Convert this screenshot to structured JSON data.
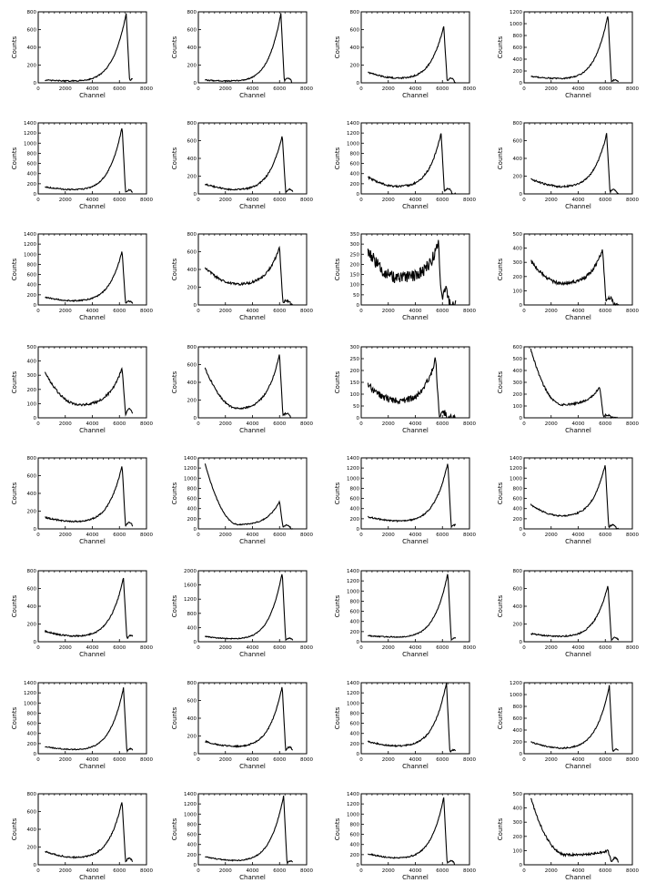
{
  "figure": {
    "rows": 8,
    "cols": 4,
    "ylabel": "Counts",
    "xlabel": "Channel"
  },
  "chart_data": [
    {
      "type": "line",
      "xlim": [
        0,
        8000
      ],
      "ylim": [
        0,
        800
      ],
      "xticks": [
        0,
        2000,
        4000,
        6000,
        8000
      ],
      "yticks": [
        0,
        200,
        400,
        600,
        800
      ],
      "xlabel": "Channel",
      "ylabel": "Counts",
      "base": 30,
      "mid": 20,
      "edge": 20,
      "peak": 780,
      "peak_x": 6500,
      "dip": 0,
      "noise": 6
    },
    {
      "type": "line",
      "xlim": [
        0,
        8000
      ],
      "ylim": [
        0,
        800
      ],
      "xticks": [
        0,
        2000,
        4000,
        6000,
        8000
      ],
      "yticks": [
        0,
        200,
        400,
        600,
        800
      ],
      "xlabel": "Channel",
      "ylabel": "Counts",
      "base": 30,
      "mid": 20,
      "edge": 20,
      "peak": 780,
      "peak_x": 6100,
      "dip": 0,
      "noise": 6
    },
    {
      "type": "line",
      "xlim": [
        0,
        8000
      ],
      "ylim": [
        0,
        800
      ],
      "xticks": [
        0,
        2000,
        4000,
        6000,
        8000
      ],
      "yticks": [
        0,
        200,
        400,
        600,
        800
      ],
      "xlabel": "Channel",
      "ylabel": "Counts",
      "base": 120,
      "mid": 50,
      "edge": 20,
      "peak": 640,
      "peak_x": 6100,
      "dip": 0,
      "noise": 8
    },
    {
      "type": "line",
      "xlim": [
        0,
        8000
      ],
      "ylim": [
        0,
        1200
      ],
      "xticks": [
        0,
        2000,
        4000,
        6000,
        8000
      ],
      "yticks": [
        0,
        200,
        400,
        600,
        800,
        1000,
        1200
      ],
      "xlabel": "Channel",
      "ylabel": "Counts",
      "base": 110,
      "mid": 70,
      "edge": 20,
      "peak": 1150,
      "peak_x": 6200,
      "dip": 0,
      "noise": 10
    },
    {
      "type": "line",
      "xlim": [
        0,
        8000
      ],
      "ylim": [
        0,
        1400
      ],
      "xticks": [
        0,
        2000,
        4000,
        6000,
        8000
      ],
      "yticks": [
        0,
        200,
        400,
        600,
        800,
        1000,
        1200,
        1400
      ],
      "xlabel": "Channel",
      "ylabel": "Counts",
      "base": 140,
      "mid": 80,
      "edge": 30,
      "peak": 1320,
      "peak_x": 6200,
      "dip": 0,
      "noise": 12
    },
    {
      "type": "line",
      "xlim": [
        0,
        8000
      ],
      "ylim": [
        0,
        800
      ],
      "xticks": [
        0,
        2000,
        4000,
        6000,
        8000
      ],
      "yticks": [
        0,
        200,
        400,
        600,
        800
      ],
      "xlabel": "Channel",
      "ylabel": "Counts",
      "base": 110,
      "mid": 45,
      "edge": 20,
      "peak": 660,
      "peak_x": 6200,
      "dip": 0,
      "noise": 8
    },
    {
      "type": "line",
      "xlim": [
        0,
        8000
      ],
      "ylim": [
        0,
        1400
      ],
      "xticks": [
        0,
        2000,
        4000,
        6000,
        8000
      ],
      "yticks": [
        0,
        200,
        400,
        600,
        800,
        1000,
        1200,
        1400
      ],
      "xlabel": "Channel",
      "ylabel": "Counts",
      "base": 330,
      "mid": 140,
      "edge": 40,
      "peak": 1200,
      "peak_x": 5900,
      "dip": 0,
      "noise": 18
    },
    {
      "type": "line",
      "xlim": [
        0,
        8000
      ],
      "ylim": [
        0,
        800
      ],
      "xticks": [
        0,
        2000,
        4000,
        6000,
        8000
      ],
      "yticks": [
        0,
        200,
        400,
        600,
        800
      ],
      "xlabel": "Channel",
      "ylabel": "Counts",
      "base": 170,
      "mid": 80,
      "edge": 20,
      "peak": 680,
      "peak_x": 6100,
      "dip": 0,
      "noise": 10
    },
    {
      "type": "line",
      "xlim": [
        0,
        8000
      ],
      "ylim": [
        0,
        1400
      ],
      "xticks": [
        0,
        2000,
        4000,
        6000,
        8000
      ],
      "yticks": [
        0,
        200,
        400,
        600,
        800,
        1000,
        1200,
        1400
      ],
      "xlabel": "Channel",
      "ylabel": "Counts",
      "base": 150,
      "mid": 80,
      "edge": 30,
      "peak": 1060,
      "peak_x": 6200,
      "dip": 0,
      "noise": 12
    },
    {
      "type": "line",
      "xlim": [
        0,
        8000
      ],
      "ylim": [
        0,
        800
      ],
      "xticks": [
        0,
        2000,
        4000,
        6000,
        8000
      ],
      "yticks": [
        0,
        200,
        400,
        600,
        800
      ],
      "xlabel": "Channel",
      "ylabel": "Counts",
      "base": 420,
      "mid": 230,
      "edge": 20,
      "peak": 650,
      "peak_x": 6000,
      "dip": 0,
      "noise": 14
    },
    {
      "type": "line",
      "xlim": [
        0,
        8000
      ],
      "ylim": [
        0,
        350
      ],
      "xticks": [
        0,
        2000,
        4000,
        6000,
        8000
      ],
      "yticks": [
        0,
        50,
        100,
        150,
        200,
        250,
        300,
        350
      ],
      "xlabel": "Channel",
      "ylabel": "Counts",
      "base": 270,
      "mid": 130,
      "edge": 30,
      "peak": 300,
      "peak_x": 5700,
      "dip": 0,
      "noise": 30
    },
    {
      "type": "line",
      "xlim": [
        0,
        8000
      ],
      "ylim": [
        0,
        500
      ],
      "xticks": [
        0,
        2000,
        4000,
        6000,
        8000
      ],
      "yticks": [
        0,
        100,
        200,
        300,
        400,
        500
      ],
      "xlabel": "Channel",
      "ylabel": "Counts",
      "base": 310,
      "mid": 150,
      "edge": 20,
      "peak": 390,
      "peak_x": 5800,
      "dip": 0,
      "noise": 12
    },
    {
      "type": "line",
      "xlim": [
        0,
        8000
      ],
      "ylim": [
        0,
        500
      ],
      "xticks": [
        0,
        2000,
        4000,
        6000,
        8000
      ],
      "yticks": [
        0,
        100,
        200,
        300,
        400,
        500
      ],
      "xlabel": "Channel",
      "ylabel": "Counts",
      "base": 320,
      "mid": 90,
      "edge": 25,
      "peak": 350,
      "peak_x": 6200,
      "dip": 0,
      "noise": 8
    },
    {
      "type": "line",
      "xlim": [
        0,
        8000
      ],
      "ylim": [
        0,
        800
      ],
      "xticks": [
        0,
        2000,
        4000,
        6000,
        8000
      ],
      "yticks": [
        0,
        200,
        400,
        600,
        800
      ],
      "xlabel": "Channel",
      "ylabel": "Counts",
      "base": 560,
      "mid": 100,
      "edge": 20,
      "peak": 720,
      "peak_x": 6000,
      "dip": 0,
      "noise": 10
    },
    {
      "type": "line",
      "xlim": [
        0,
        8000
      ],
      "ylim": [
        0,
        300
      ],
      "xticks": [
        0,
        2000,
        4000,
        6000,
        8000
      ],
      "yticks": [
        0,
        50,
        100,
        150,
        200,
        250,
        300
      ],
      "xlabel": "Channel",
      "ylabel": "Counts",
      "base": 140,
      "mid": 70,
      "edge": 10,
      "peak": 255,
      "peak_x": 5500,
      "dip": 0,
      "noise": 14
    },
    {
      "type": "line",
      "xlim": [
        0,
        8000
      ],
      "ylim": [
        0,
        600
      ],
      "xticks": [
        0,
        2000,
        4000,
        6000,
        8000
      ],
      "yticks": [
        0,
        100,
        200,
        300,
        400,
        500,
        600
      ],
      "xlabel": "Channel",
      "ylabel": "Counts",
      "base": 580,
      "mid": 110,
      "edge": 10,
      "peak": 260,
      "peak_x": 5600,
      "dip": 0,
      "noise": 8
    },
    {
      "type": "line",
      "xlim": [
        0,
        8000
      ],
      "ylim": [
        0,
        800
      ],
      "xticks": [
        0,
        2000,
        4000,
        6000,
        8000
      ],
      "yticks": [
        0,
        200,
        400,
        600,
        800
      ],
      "xlabel": "Channel",
      "ylabel": "Counts",
      "base": 130,
      "mid": 80,
      "edge": 30,
      "peak": 720,
      "peak_x": 6200,
      "dip": 0,
      "noise": 8
    },
    {
      "type": "line",
      "xlim": [
        0,
        8000
      ],
      "ylim": [
        0,
        1400
      ],
      "xticks": [
        0,
        2000,
        4000,
        6000,
        8000
      ],
      "yticks": [
        0,
        200,
        400,
        600,
        800,
        1000,
        1200,
        1400
      ],
      "xlabel": "Channel",
      "ylabel": "Counts",
      "base": 1280,
      "mid": 80,
      "edge": 30,
      "peak": 540,
      "peak_x": 6000,
      "dip": 0,
      "noise": 10
    },
    {
      "type": "line",
      "xlim": [
        0,
        8000
      ],
      "ylim": [
        0,
        1400
      ],
      "xticks": [
        0,
        2000,
        4000,
        6000,
        8000
      ],
      "yticks": [
        0,
        200,
        400,
        600,
        800,
        1000,
        1200,
        1400
      ],
      "xlabel": "Channel",
      "ylabel": "Counts",
      "base": 240,
      "mid": 150,
      "edge": 30,
      "peak": 1300,
      "peak_x": 6400,
      "dip": 0,
      "noise": 14
    },
    {
      "type": "line",
      "xlim": [
        0,
        8000
      ],
      "ylim": [
        0,
        1400
      ],
      "xticks": [
        0,
        2000,
        4000,
        6000,
        8000
      ],
      "yticks": [
        0,
        200,
        400,
        600,
        800,
        1000,
        1200,
        1400
      ],
      "xlabel": "Channel",
      "ylabel": "Counts",
      "base": 480,
      "mid": 250,
      "edge": 30,
      "peak": 1280,
      "peak_x": 6000,
      "dip": 0,
      "noise": 14
    },
    {
      "type": "line",
      "xlim": [
        0,
        8000
      ],
      "ylim": [
        0,
        800
      ],
      "xticks": [
        0,
        2000,
        4000,
        6000,
        8000
      ],
      "yticks": [
        0,
        200,
        400,
        600,
        800
      ],
      "xlabel": "Channel",
      "ylabel": "Counts",
      "base": 120,
      "mid": 60,
      "edge": 30,
      "peak": 720,
      "peak_x": 6300,
      "dip": 0,
      "noise": 8
    },
    {
      "type": "line",
      "xlim": [
        0,
        8000
      ],
      "ylim": [
        0,
        2000
      ],
      "xticks": [
        0,
        2000,
        4000,
        6000,
        8000
      ],
      "yticks": [
        0,
        400,
        800,
        1200,
        1600,
        2000
      ],
      "xlabel": "Channel",
      "ylabel": "Counts",
      "base": 150,
      "mid": 80,
      "edge": 40,
      "peak": 1950,
      "peak_x": 6200,
      "dip": 0,
      "noise": 12
    },
    {
      "type": "line",
      "xlim": [
        0,
        8000
      ],
      "ylim": [
        0,
        1400
      ],
      "xticks": [
        0,
        2000,
        4000,
        6000,
        8000
      ],
      "yticks": [
        0,
        200,
        400,
        600,
        800,
        1000,
        1200,
        1400
      ],
      "xlabel": "Channel",
      "ylabel": "Counts",
      "base": 120,
      "mid": 90,
      "edge": 30,
      "peak": 1350,
      "peak_x": 6400,
      "dip": 0,
      "noise": 10
    },
    {
      "type": "line",
      "xlim": [
        0,
        8000
      ],
      "ylim": [
        0,
        800
      ],
      "xticks": [
        0,
        2000,
        4000,
        6000,
        8000
      ],
      "yticks": [
        0,
        200,
        400,
        600,
        800
      ],
      "xlabel": "Channel",
      "ylabel": "Counts",
      "base": 90,
      "mid": 60,
      "edge": 20,
      "peak": 640,
      "peak_x": 6200,
      "dip": 0,
      "noise": 8
    },
    {
      "type": "line",
      "xlim": [
        0,
        8000
      ],
      "ylim": [
        0,
        1400
      ],
      "xticks": [
        0,
        2000,
        4000,
        6000,
        8000
      ],
      "yticks": [
        0,
        200,
        400,
        600,
        800,
        1000,
        1200,
        1400
      ],
      "xlabel": "Channel",
      "ylabel": "Counts",
      "base": 140,
      "mid": 80,
      "edge": 40,
      "peak": 1300,
      "peak_x": 6300,
      "dip": 0,
      "noise": 10
    },
    {
      "type": "line",
      "xlim": [
        0,
        8000
      ],
      "ylim": [
        0,
        800
      ],
      "xticks": [
        0,
        2000,
        4000,
        6000,
        8000
      ],
      "yticks": [
        0,
        200,
        400,
        600,
        800
      ],
      "xlabel": "Channel",
      "ylabel": "Counts",
      "base": 140,
      "mid": 80,
      "edge": 30,
      "peak": 760,
      "peak_x": 6200,
      "dip": 0,
      "noise": 8
    },
    {
      "type": "line",
      "xlim": [
        0,
        8000
      ],
      "ylim": [
        0,
        1400
      ],
      "xticks": [
        0,
        2000,
        4000,
        6000,
        8000
      ],
      "yticks": [
        0,
        200,
        400,
        600,
        800,
        1000,
        1200,
        1400
      ],
      "xlabel": "Channel",
      "ylabel": "Counts",
      "base": 240,
      "mid": 150,
      "edge": 30,
      "peak": 1400,
      "peak_x": 6300,
      "dip": 0,
      "noise": 14
    },
    {
      "type": "line",
      "xlim": [
        0,
        8000
      ],
      "ylim": [
        0,
        1200
      ],
      "xticks": [
        0,
        2000,
        4000,
        6000,
        8000
      ],
      "yticks": [
        0,
        200,
        400,
        600,
        800,
        1000,
        1200
      ],
      "xlabel": "Channel",
      "ylabel": "Counts",
      "base": 200,
      "mid": 90,
      "edge": 30,
      "peak": 1150,
      "peak_x": 6300,
      "dip": 0,
      "noise": 10
    },
    {
      "type": "line",
      "xlim": [
        0,
        8000
      ],
      "ylim": [
        0,
        800
      ],
      "xticks": [
        0,
        2000,
        4000,
        6000,
        8000
      ],
      "yticks": [
        0,
        200,
        400,
        600,
        800
      ],
      "xlabel": "Channel",
      "ylabel": "Counts",
      "base": 150,
      "mid": 80,
      "edge": 30,
      "peak": 720,
      "peak_x": 6200,
      "dip": 0,
      "noise": 8
    },
    {
      "type": "line",
      "xlim": [
        0,
        8000
      ],
      "ylim": [
        0,
        1400
      ],
      "xticks": [
        0,
        2000,
        4000,
        6000,
        8000
      ],
      "yticks": [
        0,
        200,
        400,
        600,
        800,
        1000,
        1200,
        1400
      ],
      "xlabel": "Channel",
      "ylabel": "Counts",
      "base": 160,
      "mid": 80,
      "edge": 30,
      "peak": 1360,
      "peak_x": 6300,
      "dip": 0,
      "noise": 10
    },
    {
      "type": "line",
      "xlim": [
        0,
        8000
      ],
      "ylim": [
        0,
        1400
      ],
      "xticks": [
        0,
        2000,
        4000,
        6000,
        8000
      ],
      "yticks": [
        0,
        200,
        400,
        600,
        800,
        1000,
        1200,
        1400
      ],
      "xlabel": "Channel",
      "ylabel": "Counts",
      "base": 220,
      "mid": 130,
      "edge": 30,
      "peak": 1330,
      "peak_x": 6100,
      "dip": 0,
      "noise": 12
    },
    {
      "type": "line",
      "xlim": [
        0,
        8000
      ],
      "ylim": [
        0,
        500
      ],
      "xticks": [
        0,
        2000,
        4000,
        6000,
        8000
      ],
      "yticks": [
        0,
        100,
        200,
        300,
        400,
        500
      ],
      "xlabel": "Channel",
      "ylabel": "Counts",
      "base": 470,
      "mid": 70,
      "edge": 20,
      "peak": 100,
      "peak_x": 6200,
      "dip": 0,
      "noise": 8
    }
  ]
}
